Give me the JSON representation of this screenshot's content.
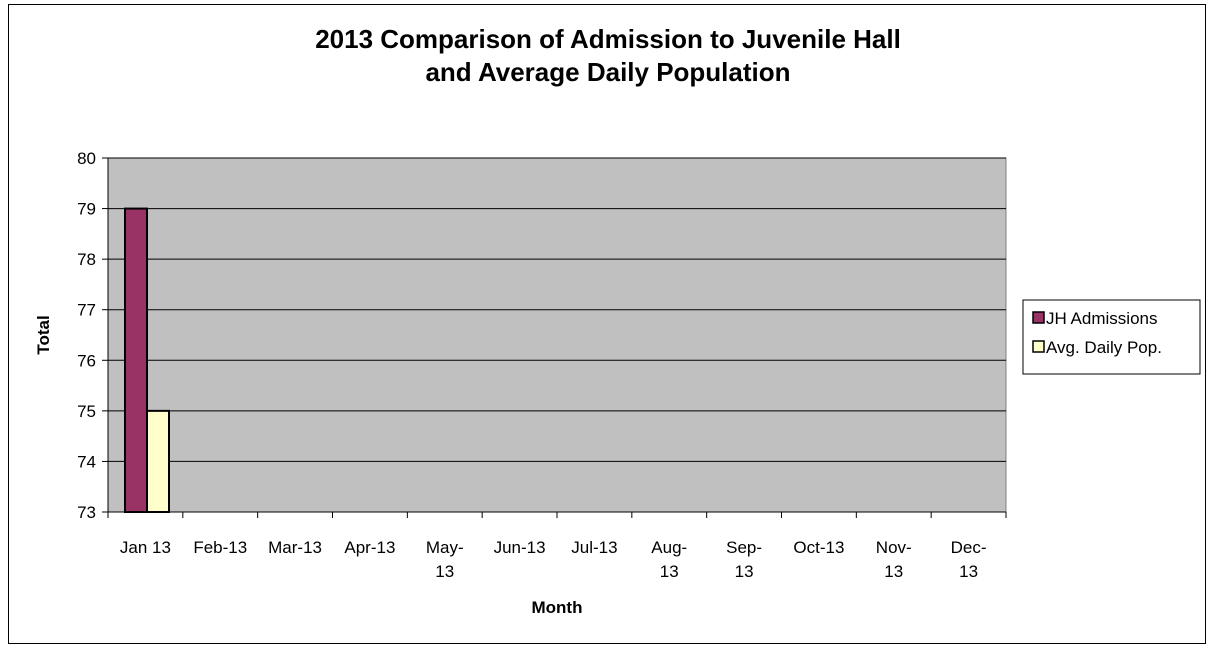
{
  "chart_data": {
    "type": "bar",
    "title_lines": [
      "2013 Comparison of Admission to Juvenile Hall",
      "and Average Daily Population"
    ],
    "xlabel": "Month",
    "ylabel": "Total",
    "ylim": [
      73,
      80
    ],
    "yticks": [
      73,
      74,
      75,
      76,
      77,
      78,
      79,
      80
    ],
    "grid": true,
    "legend_position": "right",
    "categories": [
      [
        "Jan 13"
      ],
      [
        "Feb-13"
      ],
      [
        "Mar-13"
      ],
      [
        "Apr-13"
      ],
      [
        "May-",
        "13"
      ],
      [
        "Jun-13"
      ],
      [
        "Jul-13"
      ],
      [
        "Aug-",
        "13"
      ],
      [
        "Sep-",
        "13"
      ],
      [
        "Oct-13"
      ],
      [
        "Nov-",
        "13"
      ],
      [
        "Dec-",
        "13"
      ]
    ],
    "series": [
      {
        "name": "JH Admissions",
        "color": "#993366",
        "values": [
          79,
          null,
          null,
          null,
          null,
          null,
          null,
          null,
          null,
          null,
          null,
          null
        ]
      },
      {
        "name": "Avg. Daily Pop.",
        "color": "#FFFFCC",
        "values": [
          75,
          null,
          null,
          null,
          null,
          null,
          null,
          null,
          null,
          null,
          null,
          null
        ]
      }
    ],
    "plot_background": "#C0C0C0"
  }
}
